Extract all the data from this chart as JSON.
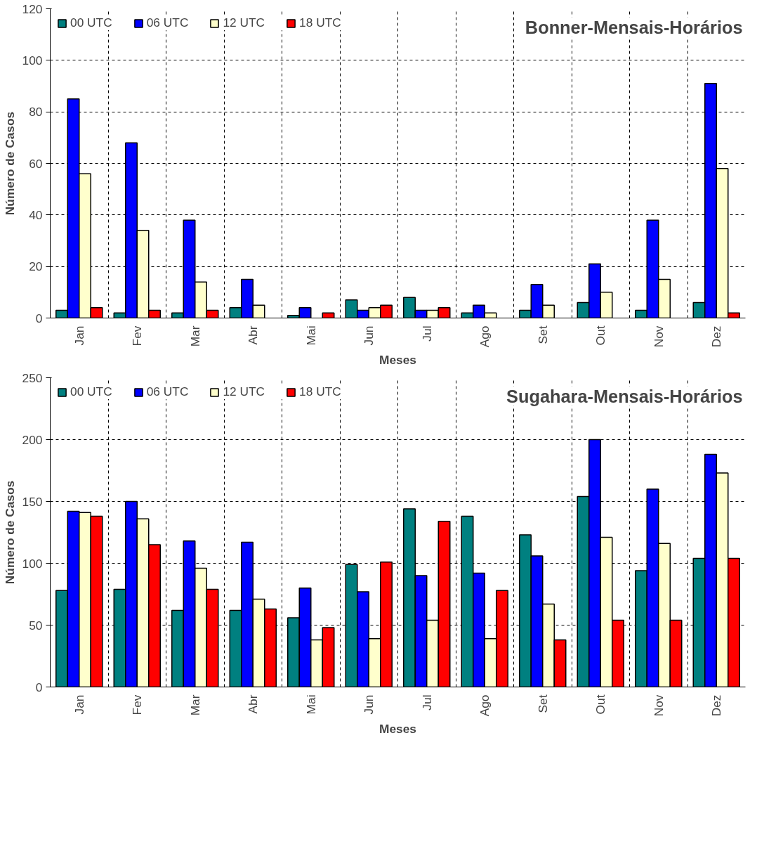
{
  "chart_data": [
    {
      "type": "bar",
      "title": "Bonner-Mensais-Horários",
      "xlabel": "Meses",
      "ylabel": "Número de Casos",
      "categories": [
        "Jan",
        "Fev",
        "Mar",
        "Abr",
        "Mai",
        "Jun",
        "Jul",
        "Ago",
        "Set",
        "Out",
        "Nov",
        "Dez"
      ],
      "series": [
        {
          "name": "00 UTC",
          "color": "#008080",
          "values": [
            3,
            2,
            2,
            4,
            1,
            7,
            8,
            2,
            3,
            6,
            3,
            6
          ]
        },
        {
          "name": "06 UTC",
          "color": "#0000ff",
          "values": [
            85,
            68,
            38,
            15,
            4,
            3,
            3,
            5,
            13,
            21,
            38,
            91
          ]
        },
        {
          "name": "12 UTC",
          "color": "#ffffcc",
          "values": [
            56,
            34,
            14,
            5,
            null,
            4,
            3,
            2,
            5,
            10,
            15,
            58
          ]
        },
        {
          "name": "18 UTC",
          "color": "#ff0000",
          "values": [
            4,
            3,
            3,
            null,
            2,
            5,
            4,
            null,
            null,
            null,
            null,
            2
          ]
        }
      ],
      "ylim": [
        0,
        120
      ],
      "yticks": [
        0,
        20,
        40,
        60,
        80,
        100,
        120
      ],
      "grid": true,
      "legend": "top left"
    },
    {
      "type": "bar",
      "title": "Sugahara-Mensais-Horários",
      "xlabel": "Meses",
      "ylabel": "Número de Casos",
      "categories": [
        "Jan",
        "Fev",
        "Mar",
        "Abr",
        "Mai",
        "Jun",
        "Jul",
        "Ago",
        "Set",
        "Out",
        "Nov",
        "Dez"
      ],
      "series": [
        {
          "name": "00 UTC",
          "color": "#008080",
          "values": [
            78,
            79,
            62,
            62,
            56,
            99,
            144,
            138,
            123,
            154,
            94,
            104
          ]
        },
        {
          "name": "06 UTC",
          "color": "#0000ff",
          "values": [
            142,
            150,
            118,
            117,
            80,
            77,
            90,
            92,
            106,
            200,
            160,
            188
          ]
        },
        {
          "name": "12 UTC",
          "color": "#ffffcc",
          "values": [
            141,
            136,
            96,
            71,
            38,
            39,
            54,
            39,
            67,
            121,
            116,
            173
          ]
        },
        {
          "name": "18 UTC",
          "color": "#ff0000",
          "values": [
            138,
            115,
            79,
            63,
            48,
            101,
            134,
            78,
            38,
            54,
            54,
            104
          ]
        }
      ],
      "ylim": [
        0,
        250
      ],
      "yticks": [
        0,
        50,
        100,
        150,
        200,
        250
      ],
      "grid": true,
      "legend": "top left"
    }
  ]
}
